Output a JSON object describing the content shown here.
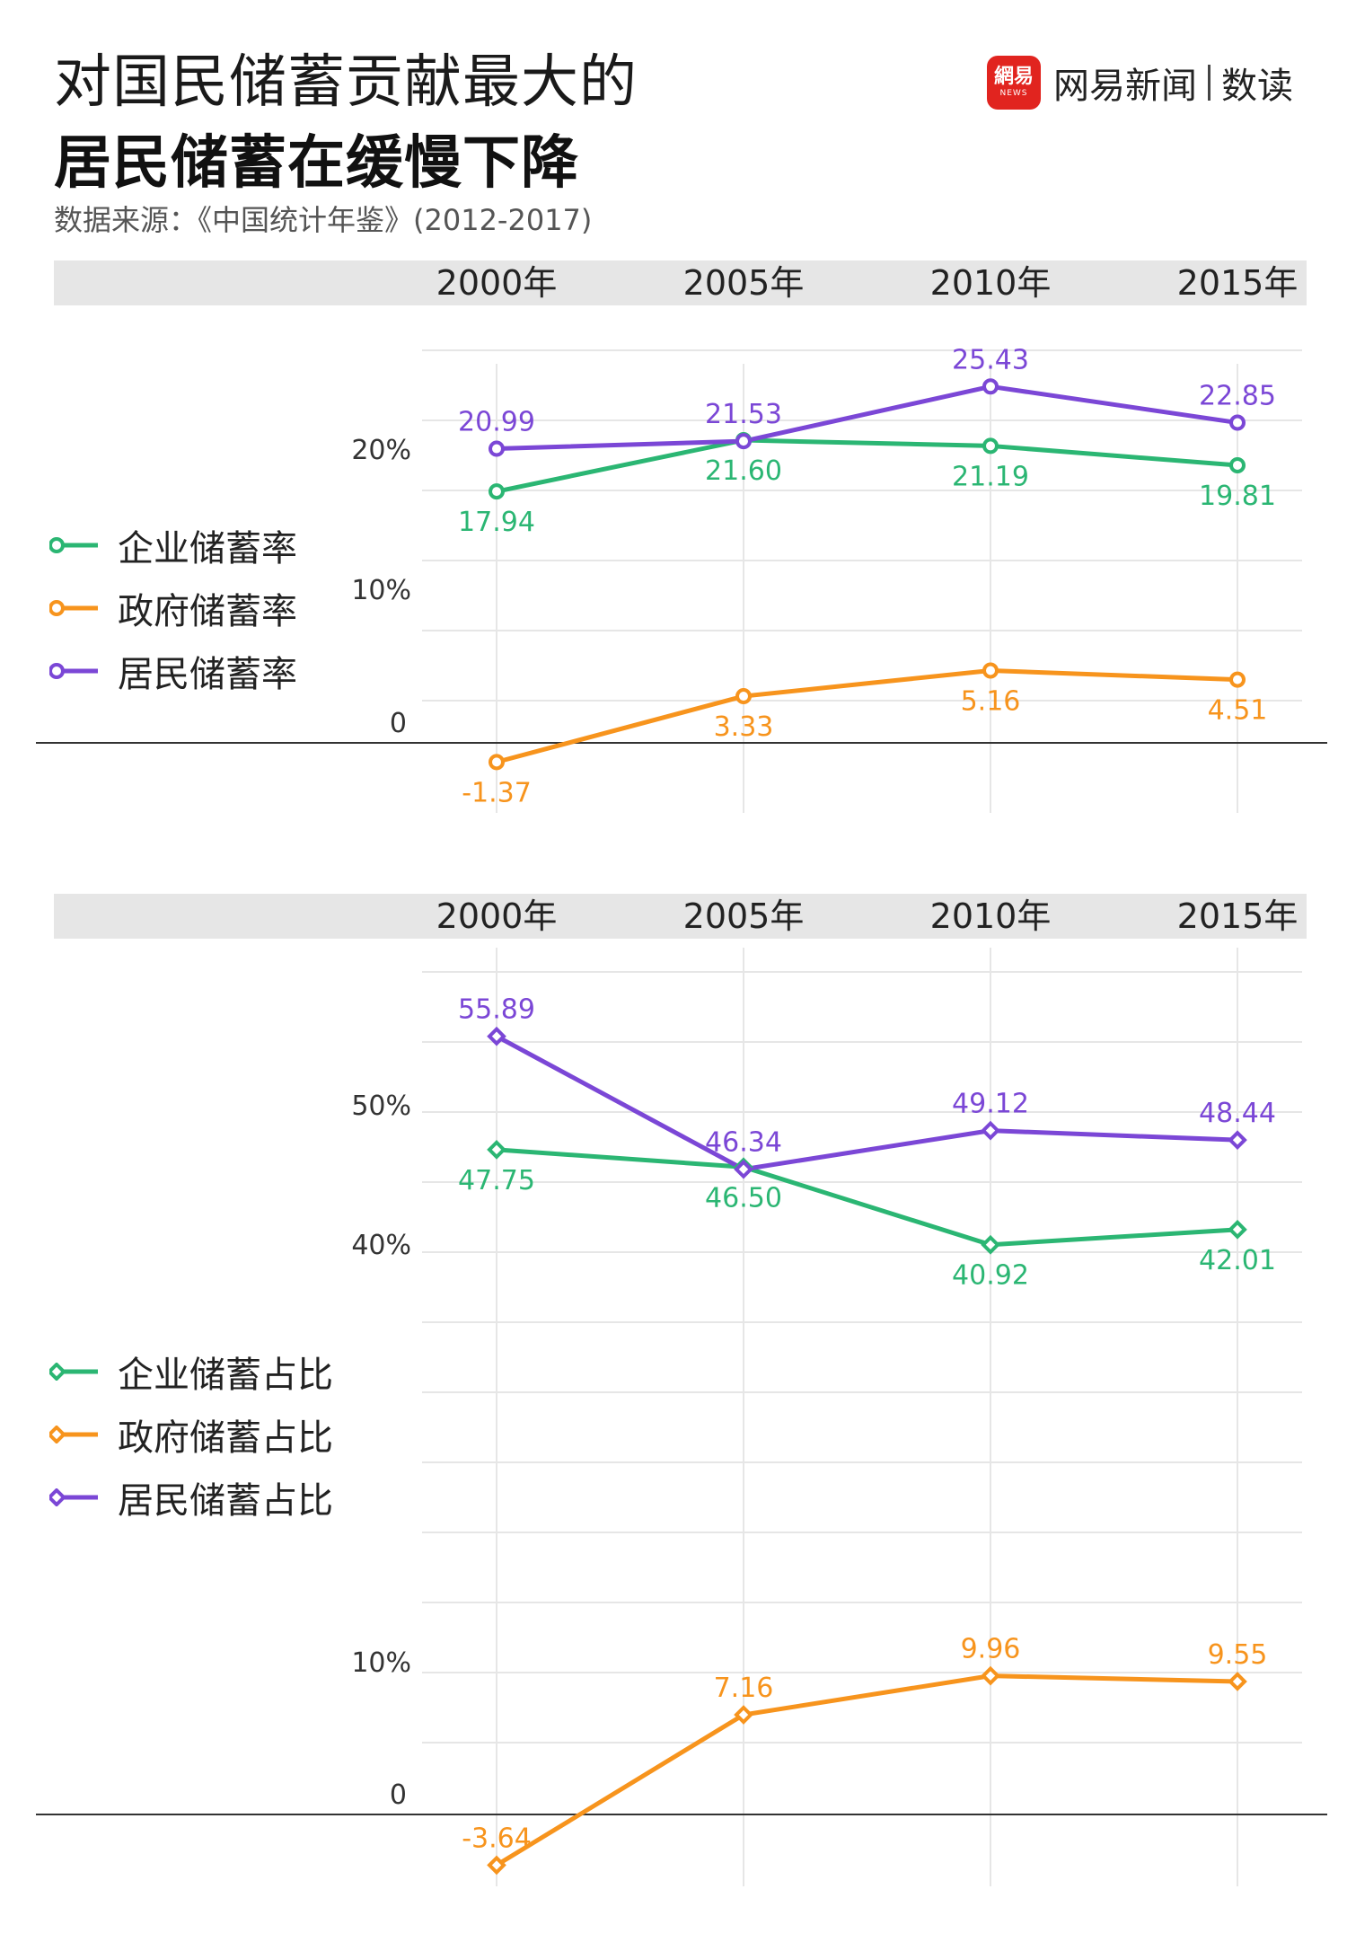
{
  "header": {
    "title_line1": "对国民储蓄贡献最大的",
    "title_line2": "居民储蓄在缓慢下降",
    "source": "数据来源：《中国统计年鉴》(2012-2017)"
  },
  "logo": {
    "badge_text": "網易",
    "badge_sub": "NEWS",
    "name": "网易新闻",
    "sub": "数读"
  },
  "colors": {
    "enterprise": "#2bb673",
    "government": "#f7941d",
    "household": "#7b47d6",
    "grid": "#e6e6e6",
    "header_band": "#e6e6e6"
  },
  "chart_data": [
    {
      "type": "line",
      "categories": [
        "2000年",
        "2005年",
        "2010年",
        "2015年"
      ],
      "yticks": [
        {
          "value": 20,
          "label": "20%"
        },
        {
          "value": 10,
          "label": "10%"
        },
        {
          "value": 0,
          "label": "0"
        }
      ],
      "ylim": [
        -5,
        29
      ],
      "series": [
        {
          "name": "企业储蓄率",
          "color": "#2bb673",
          "values": [
            17.94,
            21.6,
            21.19,
            19.81
          ],
          "labels": [
            "17.94",
            "21.60",
            "21.19",
            "19.81"
          ],
          "label_pos": [
            "below",
            "below",
            "below",
            "below"
          ],
          "marker": "circle"
        },
        {
          "name": "政府储蓄率",
          "color": "#f7941d",
          "values": [
            -1.37,
            3.33,
            5.16,
            4.51
          ],
          "labels": [
            "-1.37",
            "3.33",
            "5.16",
            "4.51"
          ],
          "label_pos": [
            "below",
            "below",
            "below",
            "below"
          ],
          "marker": "circle"
        },
        {
          "name": "居民储蓄率",
          "color": "#7b47d6",
          "values": [
            20.99,
            21.53,
            25.43,
            22.85
          ],
          "labels": [
            "20.99",
            "21.53",
            "25.43",
            "22.85"
          ],
          "label_pos": [
            "above",
            "above",
            "above",
            "above"
          ],
          "marker": "circle"
        }
      ]
    },
    {
      "type": "line",
      "categories": [
        "2000年",
        "2005年",
        "2010年",
        "2015年"
      ],
      "yticks": [
        {
          "value": 50,
          "label": "50%"
        },
        {
          "value": 40,
          "label": "40%"
        },
        {
          "value": 10,
          "label": "10%"
        },
        {
          "value": 0,
          "label": "0"
        }
      ],
      "ylim": [
        -5,
        61
      ],
      "series": [
        {
          "name": "企业储蓄占比",
          "color": "#2bb673",
          "values": [
            47.75,
            46.5,
            40.92,
            42.01
          ],
          "labels": [
            "47.75",
            "46.50",
            "40.92",
            "42.01"
          ],
          "label_pos": [
            "below",
            "below",
            "below",
            "below"
          ],
          "marker": "diamond"
        },
        {
          "name": "政府储蓄占比",
          "color": "#f7941d",
          "values": [
            -3.64,
            7.16,
            9.96,
            9.55
          ],
          "labels": [
            "-3.64",
            "7.16",
            "9.96",
            "9.55"
          ],
          "label_pos": [
            "above",
            "above",
            "above",
            "above"
          ],
          "marker": "diamond"
        },
        {
          "name": "居民储蓄占比",
          "color": "#7b47d6",
          "values": [
            55.89,
            46.34,
            49.12,
            48.44
          ],
          "labels": [
            "55.89",
            "46.34",
            "49.12",
            "48.44"
          ],
          "label_pos": [
            "above",
            "above",
            "above",
            "above"
          ],
          "marker": "diamond"
        }
      ]
    }
  ]
}
